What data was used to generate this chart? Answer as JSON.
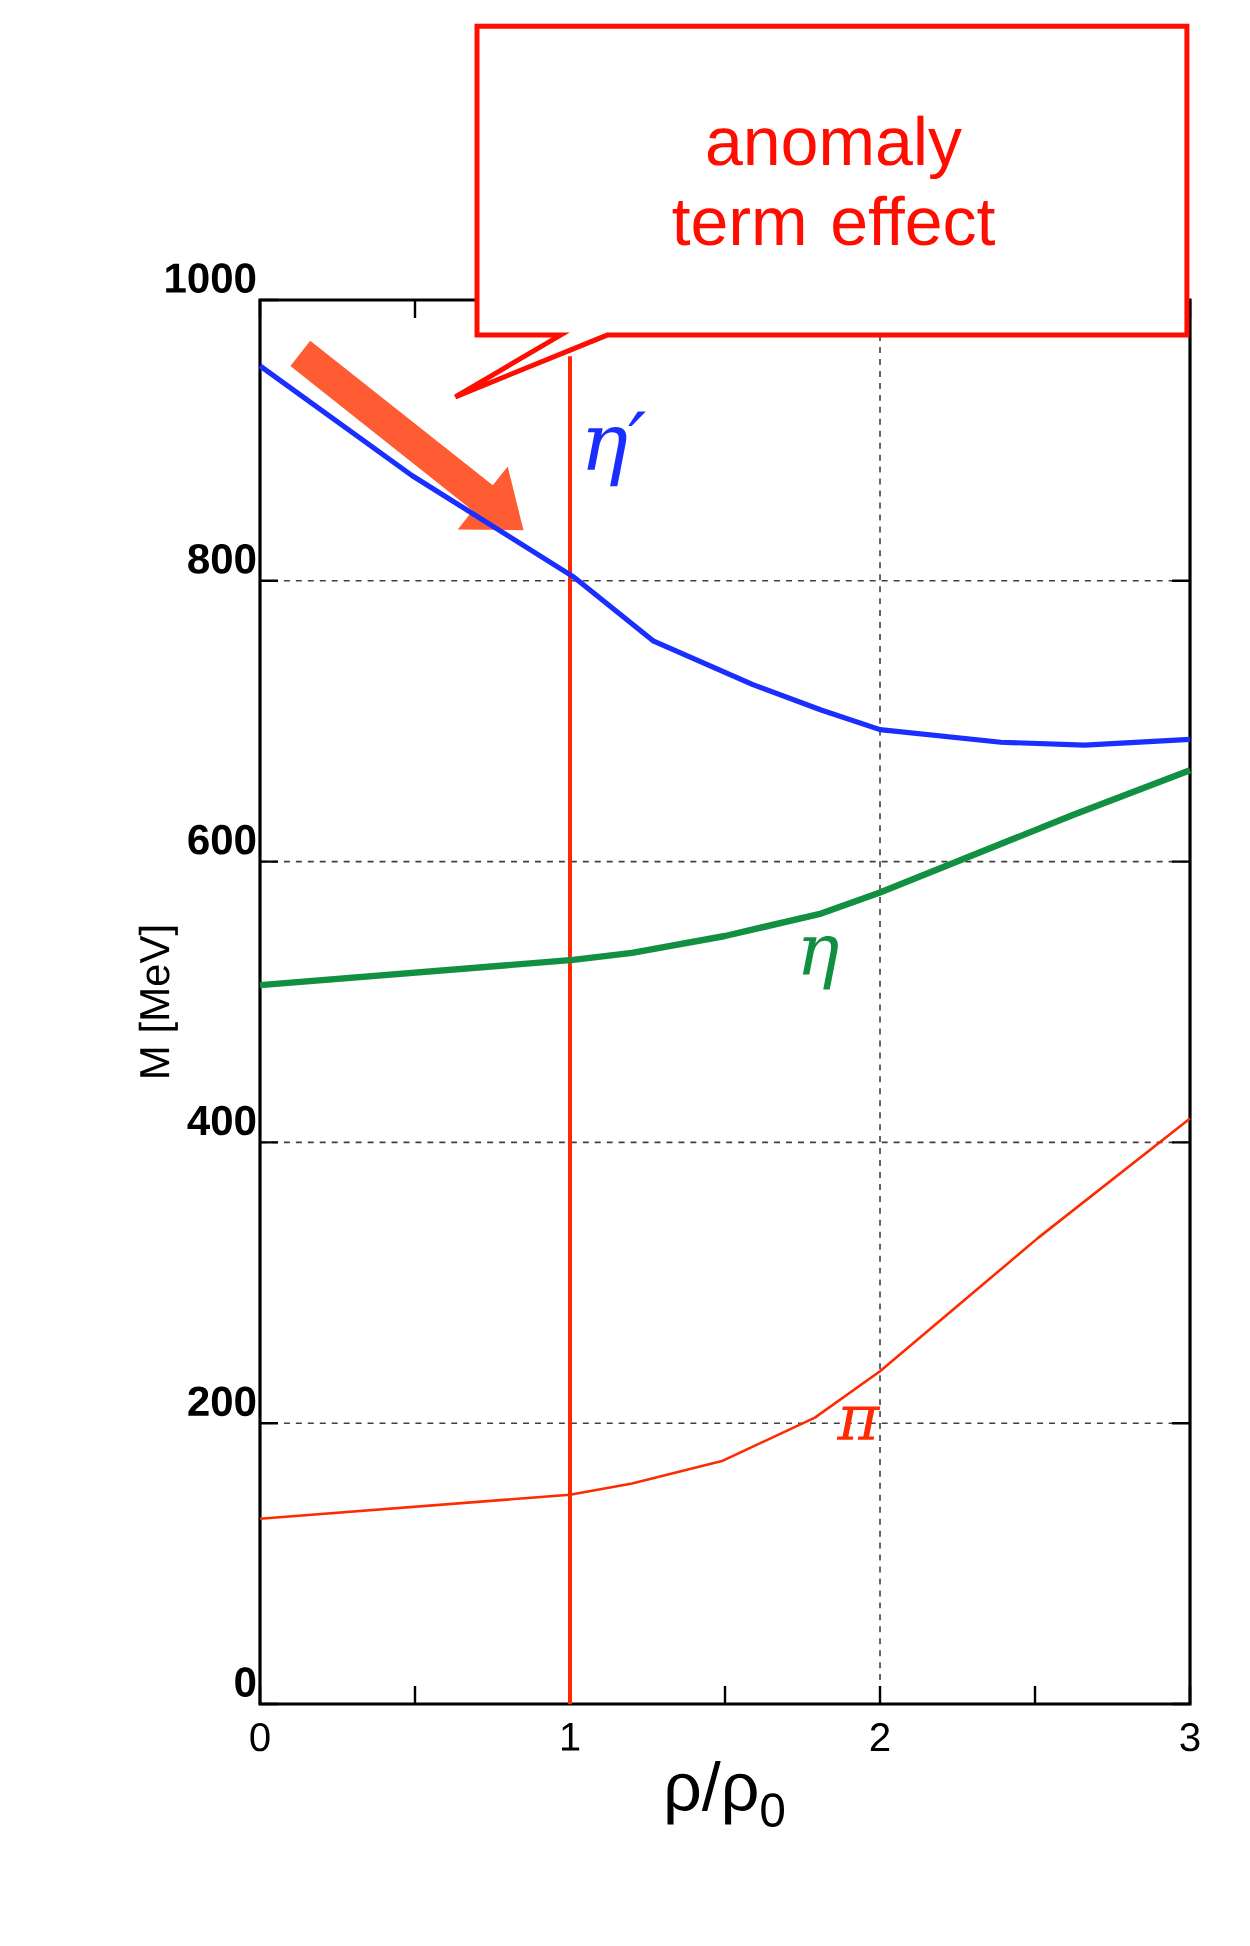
{
  "chart_data": {
    "type": "line",
    "xlabel": "ρ/ρ$_{0}$",
    "ylabel": "M [MeV]",
    "xlim": [
      0,
      3
    ],
    "ylim": [
      0,
      1000
    ],
    "xticks": [
      0,
      1,
      2,
      3
    ],
    "yticks": [
      0,
      200,
      400,
      600,
      800,
      1000
    ],
    "grid": true,
    "series": [
      {
        "name": "η′",
        "color": "#1a2eff",
        "x": [
          0,
          0.49,
          1.01,
          1.27,
          1.59,
          1.81,
          2,
          2.39,
          2.66,
          3
        ],
        "values": [
          953,
          875,
          803,
          757,
          726,
          708,
          694,
          685,
          683,
          687
        ]
      },
      {
        "name": "η",
        "color": "#109040",
        "x": [
          0,
          1.01,
          1.2,
          1.5,
          1.81,
          2,
          2.62,
          3
        ],
        "values": [
          512,
          530,
          535,
          547,
          563,
          578,
          633,
          665
        ]
      },
      {
        "name": "π",
        "color": "#ff2a00",
        "x": [
          0,
          1,
          1.2,
          1.49,
          1.79,
          2,
          2.51,
          3
        ],
        "values": [
          132,
          149,
          157,
          173,
          204,
          237,
          332,
          417
        ]
      }
    ],
    "ref_lines": [
      {
        "axis": "x",
        "value": 1,
        "color": "#ff2a00"
      }
    ],
    "annotations": [
      "anomaly term effect"
    ]
  }
}
